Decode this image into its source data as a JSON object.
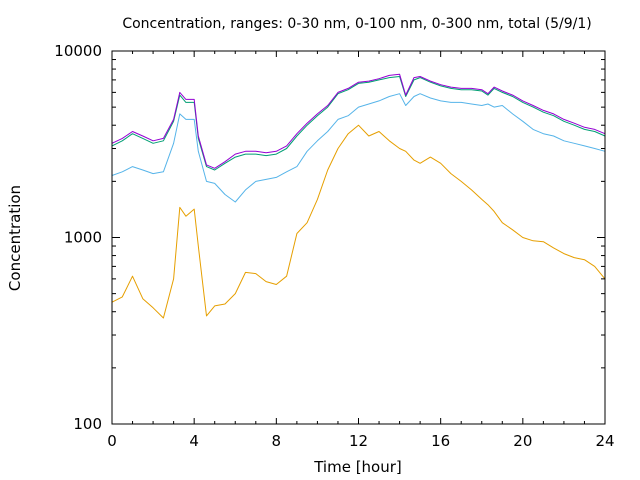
{
  "chart_data": {
    "type": "line",
    "title": "Concentration, ranges: 0-30 nm, 0-100 nm, 0-300 nm, total (5/9/1)",
    "xlabel": "Time [hour]",
    "ylabel": "Concentration",
    "xlim": [
      0,
      24
    ],
    "ylim": [
      100,
      10000
    ],
    "yscale": "log",
    "x_ticks": [
      {
        "value": 0,
        "label": "0"
      },
      {
        "value": 4,
        "label": "4"
      },
      {
        "value": 8,
        "label": "8"
      },
      {
        "value": 12,
        "label": "12"
      },
      {
        "value": 16,
        "label": "16"
      },
      {
        "value": 20,
        "label": "20"
      },
      {
        "value": 24,
        "label": "24"
      }
    ],
    "y_ticks": [
      {
        "value": 100,
        "label": "100"
      },
      {
        "value": 1000,
        "label": "1000"
      },
      {
        "value": 10000,
        "label": "10000"
      }
    ],
    "grid": false,
    "legend": "none",
    "x": [
      0,
      0.5,
      1,
      1.5,
      2,
      2.5,
      3,
      3.3,
      3.6,
      4,
      4.2,
      4.6,
      5,
      5.5,
      6,
      6.5,
      7,
      7.5,
      8,
      8.5,
      9,
      9.5,
      10,
      10.5,
      11,
      11.5,
      12,
      12.5,
      13,
      13.5,
      14,
      14.3,
      14.7,
      15,
      15.5,
      16,
      16.5,
      17,
      17.5,
      18,
      18.3,
      18.6,
      19,
      19.5,
      20,
      20.5,
      21,
      21.5,
      22,
      22.5,
      23,
      23.5,
      24
    ],
    "series": [
      {
        "color": "#e69f00",
        "values": [
          450,
          480,
          620,
          470,
          420,
          370,
          600,
          1450,
          1300,
          1420,
          900,
          380,
          430,
          440,
          500,
          650,
          640,
          580,
          560,
          620,
          1050,
          1200,
          1600,
          2300,
          3000,
          3600,
          4000,
          3500,
          3700,
          3300,
          3000,
          2900,
          2600,
          2500,
          2700,
          2500,
          2200,
          2000,
          1800,
          1600,
          1500,
          1380,
          1200,
          1100,
          1000,
          960,
          950,
          880,
          820,
          780,
          760,
          700,
          600
        ]
      },
      {
        "color": "#56b4e9",
        "values": [
          2150,
          2250,
          2400,
          2300,
          2200,
          2250,
          3200,
          4600,
          4300,
          4300,
          2900,
          2000,
          1950,
          1700,
          1550,
          1800,
          2000,
          2050,
          2100,
          2250,
          2400,
          2900,
          3300,
          3700,
          4300,
          4500,
          5000,
          5200,
          5400,
          5700,
          5900,
          5100,
          5700,
          5900,
          5600,
          5400,
          5300,
          5300,
          5200,
          5100,
          5200,
          5000,
          5100,
          4600,
          4200,
          3800,
          3600,
          3500,
          3300,
          3200,
          3100,
          3000,
          2900
        ]
      },
      {
        "color": "#009e73",
        "values": [
          3100,
          3300,
          3600,
          3400,
          3200,
          3300,
          4200,
          5800,
          5300,
          5300,
          3400,
          2400,
          2300,
          2500,
          2700,
          2800,
          2800,
          2750,
          2800,
          3000,
          3500,
          4000,
          4500,
          5000,
          5900,
          6200,
          6700,
          6800,
          7000,
          7200,
          7300,
          5700,
          7000,
          7200,
          6800,
          6500,
          6300,
          6200,
          6200,
          6100,
          5800,
          6300,
          6000,
          5700,
          5300,
          5000,
          4700,
          4500,
          4200,
          4000,
          3800,
          3700,
          3500
        ]
      },
      {
        "color": "#9400d3",
        "values": [
          3200,
          3400,
          3700,
          3500,
          3300,
          3400,
          4300,
          6000,
          5500,
          5500,
          3500,
          2450,
          2350,
          2550,
          2800,
          2900,
          2900,
          2850,
          2900,
          3100,
          3600,
          4100,
          4600,
          5100,
          6000,
          6300,
          6800,
          6900,
          7100,
          7400,
          7500,
          5800,
          7200,
          7300,
          6900,
          6600,
          6400,
          6300,
          6300,
          6200,
          5900,
          6400,
          6100,
          5800,
          5400,
          5100,
          4800,
          4600,
          4300,
          4100,
          3900,
          3800,
          3600
        ]
      }
    ]
  }
}
